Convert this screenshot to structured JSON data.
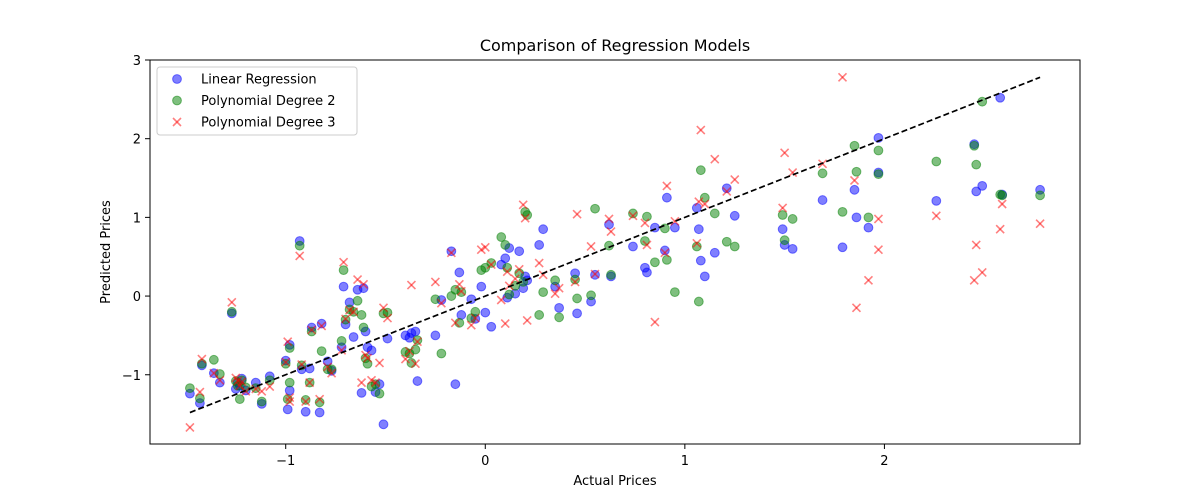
{
  "chart_data": {
    "type": "scatter",
    "title": "Comparison of Regression Models",
    "xlabel": "Actual Prices",
    "ylabel": "Predicted Prices",
    "xlim": [
      -1.68,
      2.98
    ],
    "ylim": [
      -1.88,
      3.0
    ],
    "xticks": [
      -1,
      0,
      1,
      2
    ],
    "yticks": [
      -1,
      0,
      1,
      2,
      3
    ],
    "xtick_labels": [
      "−1",
      "0",
      "1",
      "2"
    ],
    "ytick_labels": [
      "−1",
      "0",
      "1",
      "2",
      "3"
    ],
    "legend_position": "top-left",
    "reference_line": {
      "x": [
        -1.48,
        2.78
      ],
      "y": [
        -1.48,
        2.78
      ],
      "style": "dashed",
      "color": "#000000"
    },
    "x": [
      -1.48,
      -1.43,
      -1.42,
      -1.36,
      -1.33,
      -1.27,
      -1.25,
      -1.24,
      -1.23,
      -1.22,
      -1.2,
      -1.15,
      -1.12,
      -1.08,
      -1.0,
      -0.99,
      -0.98,
      -0.98,
      -0.93,
      -0.92,
      -0.9,
      -0.88,
      -0.87,
      -0.83,
      -0.82,
      -0.79,
      -0.77,
      -0.72,
      -0.71,
      -0.7,
      -0.68,
      -0.66,
      -0.64,
      -0.62,
      -0.61,
      -0.6,
      -0.59,
      -0.57,
      -0.55,
      -0.53,
      -0.51,
      -0.49,
      -0.4,
      -0.38,
      -0.37,
      -0.35,
      -0.34,
      -0.25,
      -0.22,
      -0.17,
      -0.15,
      -0.13,
      -0.12,
      -0.07,
      -0.05,
      -0.02,
      0.0,
      0.03,
      0.08,
      0.1,
      0.11,
      0.12,
      0.15,
      0.17,
      0.19,
      0.2,
      0.21,
      0.27,
      0.29,
      0.35,
      0.37,
      0.45,
      0.46,
      0.53,
      0.55,
      0.62,
      0.63,
      0.74,
      0.8,
      0.81,
      0.85,
      0.9,
      0.91,
      0.95,
      1.06,
      1.07,
      1.08,
      1.1,
      1.15,
      1.21,
      1.25,
      1.49,
      1.5,
      1.54,
      1.69,
      1.79,
      1.85,
      1.86,
      1.92,
      1.97,
      1.97,
      2.26,
      2.45,
      2.46,
      2.49,
      2.58,
      2.59,
      2.78
    ],
    "series": [
      {
        "name": "Linear Regression",
        "color": "#0000ff",
        "marker": "circle",
        "values": [
          -1.24,
          -1.36,
          -0.88,
          -0.98,
          -1.1,
          -0.22,
          -1.18,
          -1.1,
          -1.14,
          -1.05,
          -1.2,
          -1.1,
          -1.37,
          -1.02,
          -0.82,
          -1.44,
          -0.62,
          -1.2,
          0.7,
          -0.93,
          -1.47,
          -0.92,
          -0.4,
          -1.48,
          -0.35,
          -0.83,
          -0.95,
          -0.65,
          0.12,
          -0.36,
          -0.08,
          -0.52,
          0.08,
          -1.23,
          0.1,
          -0.45,
          -0.65,
          -0.69,
          -1.22,
          -1.12,
          -1.63,
          -0.54,
          -0.5,
          -0.53,
          -0.47,
          -0.45,
          -1.08,
          -0.5,
          -0.05,
          0.57,
          -1.12,
          0.3,
          -0.24,
          -0.04,
          -0.29,
          0.12,
          -0.21,
          -0.39,
          0.4,
          0.48,
          -0.02,
          0.61,
          0.03,
          0.57,
          0.1,
          0.25,
          0.2,
          0.65,
          0.85,
          0.12,
          -0.15,
          0.29,
          -0.22,
          -0.07,
          0.27,
          0.91,
          0.25,
          0.63,
          0.36,
          0.3,
          0.87,
          0.58,
          1.25,
          0.87,
          1.12,
          0.85,
          0.45,
          0.25,
          0.55,
          1.37,
          1.02,
          0.85,
          0.65,
          0.6,
          1.22,
          0.62,
          1.35,
          1.0,
          0.87,
          2.01,
          1.57,
          1.21,
          1.93,
          1.33,
          1.4,
          2.52,
          1.29,
          1.35
        ]
      },
      {
        "name": "Polynomial Degree 2",
        "color": "#008000",
        "marker": "circle",
        "values": [
          -1.17,
          -1.3,
          -0.86,
          -0.81,
          -0.99,
          -0.2,
          -1.08,
          -1.14,
          -1.31,
          -1.07,
          -1.16,
          -1.17,
          -1.34,
          -1.07,
          -0.86,
          -1.31,
          -0.66,
          -1.1,
          0.64,
          -0.88,
          -1.32,
          -1.1,
          -0.45,
          -1.35,
          -0.7,
          -0.93,
          -0.93,
          -0.57,
          0.33,
          -0.3,
          -0.17,
          -0.2,
          -0.06,
          -0.24,
          -0.4,
          -0.79,
          -0.86,
          -1.15,
          -1.12,
          -1.24,
          -0.22,
          -0.21,
          -0.71,
          -0.73,
          -0.85,
          -0.68,
          -0.56,
          -0.04,
          -0.73,
          0.0,
          0.08,
          -0.34,
          0.05,
          -0.28,
          -0.2,
          0.33,
          0.36,
          0.42,
          0.75,
          0.65,
          0.36,
          0.02,
          0.13,
          0.29,
          0.18,
          1.07,
          1.03,
          -0.24,
          0.05,
          0.2,
          -0.27,
          0.21,
          -0.03,
          0.01,
          1.11,
          0.64,
          0.27,
          1.05,
          0.7,
          1.01,
          0.43,
          0.86,
          0.46,
          0.05,
          0.63,
          -0.07,
          1.6,
          1.25,
          1.05,
          0.69,
          0.63,
          1.03,
          0.71,
          0.98,
          1.56,
          1.07,
          1.91,
          1.58,
          1.0,
          1.55,
          1.85,
          1.71,
          1.91,
          1.67,
          2.47,
          1.29,
          1.28,
          1.28
        ]
      },
      {
        "name": "Polynomial Degree 3",
        "color": "#ff0000",
        "marker": "x",
        "values": [
          -1.67,
          -1.22,
          -0.8,
          -0.98,
          -1.07,
          -0.08,
          -1.04,
          -1.08,
          -1.14,
          -1.09,
          -1.21,
          -1.18,
          -1.21,
          -1.15,
          -0.84,
          -0.58,
          -1.34,
          -1.29,
          0.51,
          -0.87,
          -1.34,
          -1.1,
          -0.43,
          -1.31,
          -0.38,
          -0.9,
          -0.98,
          -0.69,
          0.43,
          -0.29,
          -0.18,
          -0.2,
          0.21,
          -1.1,
          0.15,
          -0.75,
          -0.79,
          -1.07,
          -1.1,
          -0.85,
          -0.15,
          -0.28,
          -0.8,
          -0.7,
          0.14,
          -0.86,
          -0.58,
          0.18,
          -0.09,
          0.55,
          -0.34,
          0.15,
          0.06,
          -0.37,
          -0.28,
          0.59,
          0.62,
          0.4,
          -0.05,
          -0.35,
          0.31,
          0.13,
          0.22,
          0.34,
          1.16,
          0.99,
          -0.31,
          0.42,
          0.27,
          0.03,
          0.1,
          0.18,
          1.04,
          0.63,
          0.28,
          0.98,
          0.82,
          1.02,
          0.93,
          0.65,
          -0.33,
          0.55,
          1.4,
          0.95,
          0.67,
          1.2,
          2.11,
          1.17,
          1.74,
          1.33,
          1.48,
          1.12,
          1.82,
          1.57,
          1.68,
          2.78,
          1.47,
          -0.15,
          0.2,
          0.59,
          0.98,
          1.02,
          0.2,
          0.65,
          0.3,
          0.85,
          1.17,
          0.92
        ]
      }
    ]
  }
}
